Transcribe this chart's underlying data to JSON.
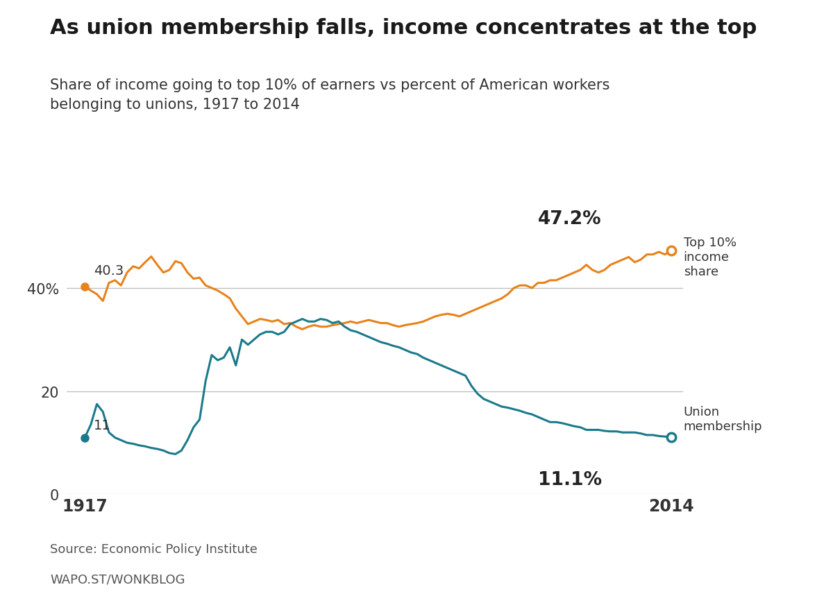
{
  "title": "As union membership falls, income concentrates at the top",
  "subtitle": "Share of income going to top 10% of earners vs percent of American workers\nbelonging to unions, 1917 to 2014",
  "source": "Source: Economic Policy Institute",
  "url": "WAPO.ST/WONKBLOG",
  "top10_color": "#E8821A",
  "union_color": "#1A7A8A",
  "background_color": "#FFFFFF",
  "grid_color": "#BBBBBB",
  "top10_data": [
    [
      1917,
      40.3
    ],
    [
      1918,
      39.5
    ],
    [
      1919,
      38.8
    ],
    [
      1920,
      37.5
    ],
    [
      1921,
      41.0
    ],
    [
      1922,
      41.5
    ],
    [
      1923,
      40.5
    ],
    [
      1924,
      43.0
    ],
    [
      1925,
      44.2
    ],
    [
      1926,
      43.8
    ],
    [
      1927,
      45.0
    ],
    [
      1928,
      46.1
    ],
    [
      1929,
      44.5
    ],
    [
      1930,
      43.0
    ],
    [
      1931,
      43.5
    ],
    [
      1932,
      45.2
    ],
    [
      1933,
      44.8
    ],
    [
      1934,
      43.0
    ],
    [
      1935,
      41.8
    ],
    [
      1936,
      42.0
    ],
    [
      1937,
      40.5
    ],
    [
      1938,
      40.0
    ],
    [
      1939,
      39.5
    ],
    [
      1940,
      38.8
    ],
    [
      1941,
      38.0
    ],
    [
      1942,
      36.0
    ],
    [
      1943,
      34.5
    ],
    [
      1944,
      33.0
    ],
    [
      1945,
      33.5
    ],
    [
      1946,
      34.0
    ],
    [
      1947,
      33.8
    ],
    [
      1948,
      33.5
    ],
    [
      1949,
      33.8
    ],
    [
      1950,
      33.0
    ],
    [
      1951,
      33.2
    ],
    [
      1952,
      32.5
    ],
    [
      1953,
      32.0
    ],
    [
      1954,
      32.5
    ],
    [
      1955,
      32.8
    ],
    [
      1956,
      32.5
    ],
    [
      1957,
      32.5
    ],
    [
      1958,
      32.8
    ],
    [
      1959,
      33.0
    ],
    [
      1960,
      33.2
    ],
    [
      1961,
      33.5
    ],
    [
      1962,
      33.2
    ],
    [
      1963,
      33.5
    ],
    [
      1964,
      33.8
    ],
    [
      1965,
      33.5
    ],
    [
      1966,
      33.2
    ],
    [
      1967,
      33.2
    ],
    [
      1968,
      32.8
    ],
    [
      1969,
      32.5
    ],
    [
      1970,
      32.8
    ],
    [
      1971,
      33.0
    ],
    [
      1972,
      33.2
    ],
    [
      1973,
      33.5
    ],
    [
      1974,
      34.0
    ],
    [
      1975,
      34.5
    ],
    [
      1976,
      34.8
    ],
    [
      1977,
      35.0
    ],
    [
      1978,
      34.8
    ],
    [
      1979,
      34.5
    ],
    [
      1980,
      35.0
    ],
    [
      1981,
      35.5
    ],
    [
      1982,
      36.0
    ],
    [
      1983,
      36.5
    ],
    [
      1984,
      37.0
    ],
    [
      1985,
      37.5
    ],
    [
      1986,
      38.0
    ],
    [
      1987,
      38.8
    ],
    [
      1988,
      40.0
    ],
    [
      1989,
      40.5
    ],
    [
      1990,
      40.5
    ],
    [
      1991,
      40.0
    ],
    [
      1992,
      41.0
    ],
    [
      1993,
      41.0
    ],
    [
      1994,
      41.5
    ],
    [
      1995,
      41.5
    ],
    [
      1996,
      42.0
    ],
    [
      1997,
      42.5
    ],
    [
      1998,
      43.0
    ],
    [
      1999,
      43.5
    ],
    [
      2000,
      44.5
    ],
    [
      2001,
      43.5
    ],
    [
      2002,
      43.0
    ],
    [
      2003,
      43.5
    ],
    [
      2004,
      44.5
    ],
    [
      2005,
      45.0
    ],
    [
      2006,
      45.5
    ],
    [
      2007,
      46.0
    ],
    [
      2008,
      45.0
    ],
    [
      2009,
      45.5
    ],
    [
      2010,
      46.5
    ],
    [
      2011,
      46.5
    ],
    [
      2012,
      47.0
    ],
    [
      2013,
      46.5
    ],
    [
      2014,
      47.2
    ]
  ],
  "union_data": [
    [
      1917,
      11.0
    ],
    [
      1918,
      13.5
    ],
    [
      1919,
      17.5
    ],
    [
      1920,
      16.0
    ],
    [
      1921,
      12.0
    ],
    [
      1922,
      11.0
    ],
    [
      1923,
      10.5
    ],
    [
      1924,
      10.0
    ],
    [
      1925,
      9.8
    ],
    [
      1926,
      9.5
    ],
    [
      1927,
      9.3
    ],
    [
      1928,
      9.0
    ],
    [
      1929,
      8.8
    ],
    [
      1930,
      8.5
    ],
    [
      1931,
      8.0
    ],
    [
      1932,
      7.8
    ],
    [
      1933,
      8.5
    ],
    [
      1934,
      10.5
    ],
    [
      1935,
      13.0
    ],
    [
      1936,
      14.5
    ],
    [
      1937,
      22.0
    ],
    [
      1938,
      27.0
    ],
    [
      1939,
      26.0
    ],
    [
      1940,
      26.5
    ],
    [
      1941,
      28.5
    ],
    [
      1942,
      25.0
    ],
    [
      1943,
      30.0
    ],
    [
      1944,
      29.0
    ],
    [
      1945,
      30.0
    ],
    [
      1946,
      31.0
    ],
    [
      1947,
      31.5
    ],
    [
      1948,
      31.5
    ],
    [
      1949,
      31.0
    ],
    [
      1950,
      31.5
    ],
    [
      1951,
      33.0
    ],
    [
      1952,
      33.5
    ],
    [
      1953,
      34.0
    ],
    [
      1954,
      33.5
    ],
    [
      1955,
      33.5
    ],
    [
      1956,
      34.0
    ],
    [
      1957,
      33.8
    ],
    [
      1958,
      33.2
    ],
    [
      1959,
      33.5
    ],
    [
      1960,
      32.5
    ],
    [
      1961,
      31.8
    ],
    [
      1962,
      31.5
    ],
    [
      1963,
      31.0
    ],
    [
      1964,
      30.5
    ],
    [
      1965,
      30.0
    ],
    [
      1966,
      29.5
    ],
    [
      1967,
      29.2
    ],
    [
      1968,
      28.8
    ],
    [
      1969,
      28.5
    ],
    [
      1970,
      28.0
    ],
    [
      1971,
      27.5
    ],
    [
      1972,
      27.2
    ],
    [
      1973,
      26.5
    ],
    [
      1974,
      26.0
    ],
    [
      1975,
      25.5
    ],
    [
      1976,
      25.0
    ],
    [
      1977,
      24.5
    ],
    [
      1978,
      24.0
    ],
    [
      1979,
      23.5
    ],
    [
      1980,
      23.0
    ],
    [
      1981,
      21.0
    ],
    [
      1982,
      19.5
    ],
    [
      1983,
      18.5
    ],
    [
      1984,
      18.0
    ],
    [
      1985,
      17.5
    ],
    [
      1986,
      17.0
    ],
    [
      1987,
      16.8
    ],
    [
      1988,
      16.5
    ],
    [
      1989,
      16.2
    ],
    [
      1990,
      15.8
    ],
    [
      1991,
      15.5
    ],
    [
      1992,
      15.0
    ],
    [
      1993,
      14.5
    ],
    [
      1994,
      14.0
    ],
    [
      1995,
      14.0
    ],
    [
      1996,
      13.8
    ],
    [
      1997,
      13.5
    ],
    [
      1998,
      13.2
    ],
    [
      1999,
      13.0
    ],
    [
      2000,
      12.5
    ],
    [
      2001,
      12.5
    ],
    [
      2002,
      12.5
    ],
    [
      2003,
      12.3
    ],
    [
      2004,
      12.2
    ],
    [
      2005,
      12.2
    ],
    [
      2006,
      12.0
    ],
    [
      2007,
      12.0
    ],
    [
      2008,
      12.0
    ],
    [
      2009,
      11.8
    ],
    [
      2010,
      11.5
    ],
    [
      2011,
      11.5
    ],
    [
      2012,
      11.3
    ],
    [
      2013,
      11.2
    ],
    [
      2014,
      11.1
    ]
  ],
  "yticks": [
    0,
    20,
    40
  ],
  "ytick_labels": [
    "0",
    "20",
    "40%"
  ],
  "ylim": [
    0,
    55
  ],
  "xlim": [
    1914,
    2016
  ],
  "title_fontsize": 22,
  "subtitle_fontsize": 15,
  "tick_fontsize": 15,
  "annotation_fontsize": 14,
  "source_fontsize": 13
}
